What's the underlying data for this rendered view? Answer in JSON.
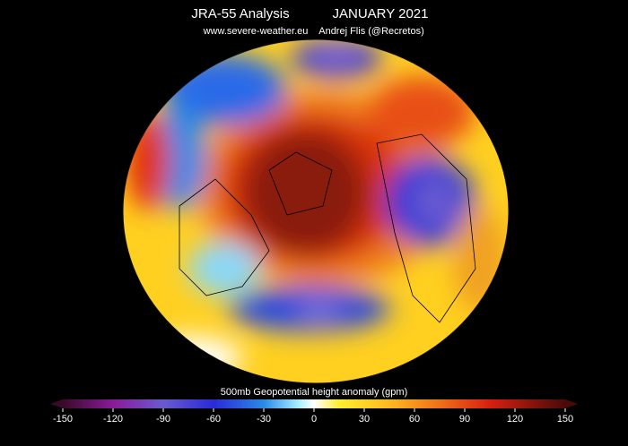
{
  "header": {
    "title": "JRA-55 Analysis",
    "date": "JANUARY 2021",
    "website": "www.severe-weather.eu",
    "author": "Andrej Flis (@Recretos)"
  },
  "colorbar": {
    "label": "500mb Geopotential height anomaly (gpm)",
    "ticks": [
      -150,
      -120,
      -90,
      -60,
      -30,
      0,
      30,
      60,
      90,
      120,
      150
    ]
  }
}
